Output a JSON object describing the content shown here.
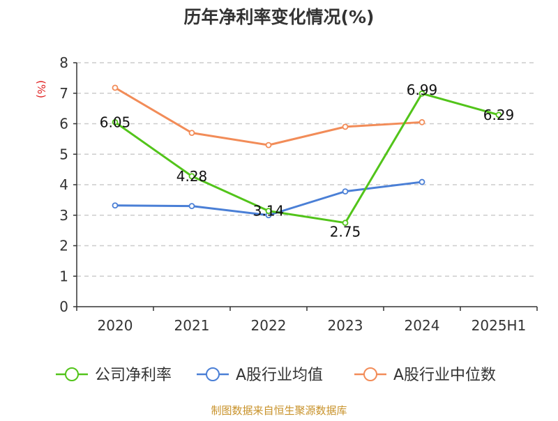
{
  "chart_data": {
    "type": "line",
    "title": "历年净利率变化情况(%)",
    "ylabel": "(%)",
    "categories": [
      "2020",
      "2021",
      "2022",
      "2023",
      "2024",
      "2025H1"
    ],
    "yticks": [
      "0",
      "1",
      "2",
      "3",
      "4",
      "5",
      "6",
      "7",
      "8"
    ],
    "ylim": [
      0,
      8
    ],
    "grid": true,
    "legend_position": "bottom",
    "series": [
      {
        "name": "公司净利率",
        "color": "#52c41a",
        "values": [
          6.05,
          4.28,
          3.14,
          2.75,
          6.99,
          6.29
        ],
        "labels": [
          "6.05",
          "4.28",
          "3.14",
          "2.75",
          "6.99",
          "6.29"
        ]
      },
      {
        "name": "A股行业均值",
        "color": "#4a7fd6",
        "values": [
          3.32,
          3.3,
          3.0,
          3.78,
          4.09,
          null
        ]
      },
      {
        "name": "A股行业中位数",
        "color": "#f28c58",
        "values": [
          7.18,
          5.7,
          5.3,
          5.9,
          6.05,
          null
        ]
      }
    ]
  },
  "source": "制图数据来自恒生聚源数据库",
  "colors": {
    "title": "#333333",
    "ylabel": "#e02020",
    "source": "#c8922a",
    "grid": "#cccccc",
    "axis": "#333333"
  }
}
